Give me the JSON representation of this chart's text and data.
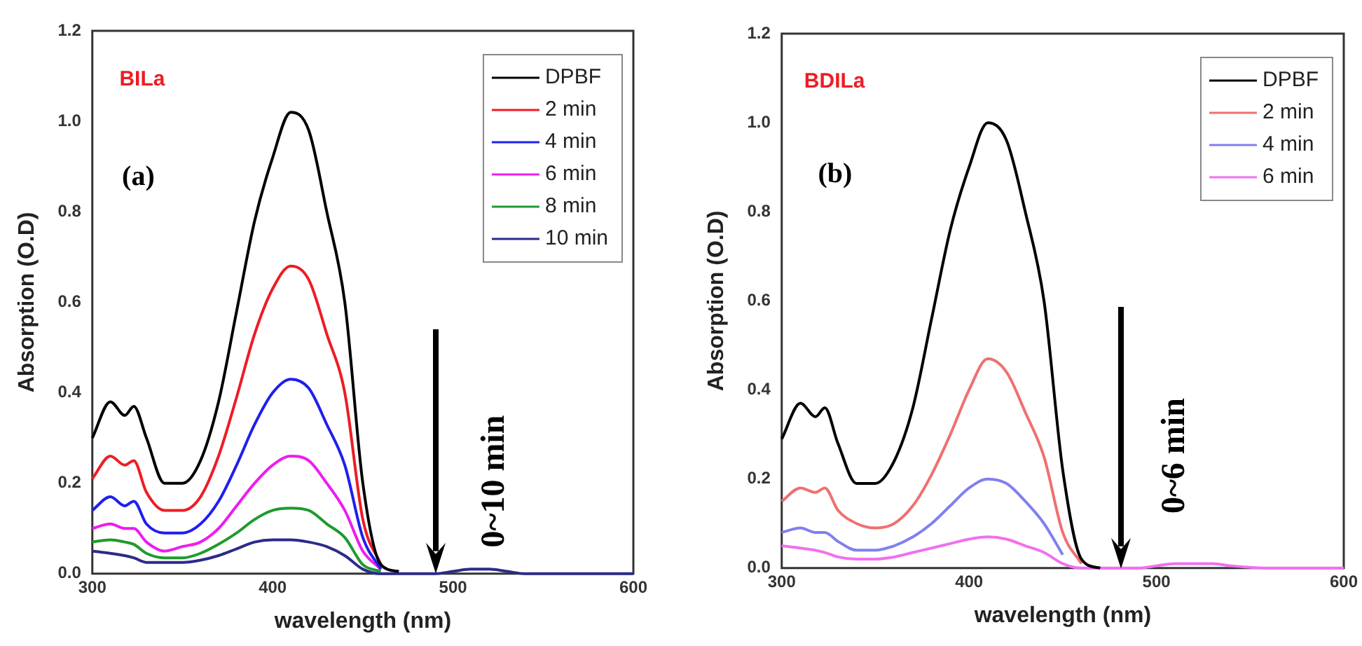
{
  "chart_data": [
    {
      "type": "line",
      "xlabel": "wavelength (nm)",
      "ylabel": "Absorption (O.D)",
      "annotations": [
        "BILa",
        "(a)",
        "0~10 min"
      ],
      "x": [
        300,
        310,
        318,
        323,
        330,
        340,
        350,
        360,
        370,
        380,
        390,
        400,
        410,
        420,
        430,
        440,
        450,
        460,
        470,
        480,
        490,
        500,
        510,
        520,
        530,
        540,
        560,
        580,
        600
      ],
      "xlim": [
        300,
        600
      ],
      "xticks": [
        300,
        400,
        500,
        600
      ],
      "ylim": [
        0,
        1.2
      ],
      "yticks": [
        {
          "value": 0,
          "label": "0.0"
        },
        {
          "value": 0.2,
          "label": "0.2"
        },
        {
          "value": 0.4,
          "label": "0.4"
        },
        {
          "value": 0.6,
          "label": "0.6"
        },
        {
          "value": 0.8,
          "label": "0.8"
        },
        {
          "value": 1.0,
          "label": "1.0"
        },
        {
          "value": 1.2,
          "label": "1.2"
        }
      ],
      "grid": false,
      "legend": "top right",
      "marker": "none",
      "line_style": "solid",
      "series": [
        {
          "name": "DPBF",
          "color": "#000000",
          "values": [
            0.3,
            0.38,
            0.35,
            0.37,
            0.3,
            0.2,
            0.2,
            0.25,
            0.38,
            0.58,
            0.78,
            0.92,
            1.02,
            0.98,
            0.8,
            0.6,
            0.2,
            0.02,
            0.005,
            null,
            null,
            null,
            null,
            null,
            null,
            null,
            null,
            null,
            null
          ]
        },
        {
          "name": "2 min",
          "color": "#ee1c24",
          "values": [
            0.21,
            0.26,
            0.24,
            0.25,
            0.18,
            0.14,
            0.14,
            0.17,
            0.26,
            0.39,
            0.53,
            0.63,
            0.68,
            0.65,
            0.53,
            0.4,
            0.12,
            0.02,
            null,
            null,
            null,
            null,
            null,
            null,
            null,
            null,
            null,
            null,
            null
          ]
        },
        {
          "name": "4 min",
          "color": "#1f1fee",
          "values": [
            0.14,
            0.17,
            0.15,
            0.16,
            0.11,
            0.09,
            0.09,
            0.11,
            0.16,
            0.24,
            0.33,
            0.4,
            0.43,
            0.41,
            0.33,
            0.24,
            0.08,
            0.01,
            null,
            null,
            null,
            null,
            null,
            null,
            null,
            null,
            null,
            null,
            null
          ]
        },
        {
          "name": "6 min",
          "color": "#ee1cee",
          "values": [
            0.1,
            0.11,
            0.1,
            0.1,
            0.07,
            0.05,
            0.06,
            0.07,
            0.1,
            0.15,
            0.2,
            0.24,
            0.26,
            0.25,
            0.2,
            0.14,
            0.05,
            0.01,
            null,
            null,
            null,
            null,
            null,
            null,
            null,
            null,
            null,
            null,
            null
          ]
        },
        {
          "name": "8 min",
          "color": "#1f9a2e",
          "values": [
            0.07,
            0.075,
            0.07,
            0.065,
            0.045,
            0.035,
            0.035,
            0.045,
            0.065,
            0.09,
            0.12,
            0.14,
            0.145,
            0.14,
            0.11,
            0.08,
            0.02,
            0.005,
            null,
            null,
            null,
            null,
            null,
            null,
            null,
            null,
            null,
            null,
            null
          ]
        },
        {
          "name": "10 min",
          "color": "#2b2b8a",
          "values": [
            0.05,
            0.045,
            0.04,
            0.035,
            0.025,
            0.025,
            0.025,
            0.03,
            0.04,
            0.055,
            0.07,
            0.075,
            0.075,
            0.07,
            0.06,
            0.04,
            0.01,
            0,
            0,
            0,
            0,
            0.005,
            0.01,
            0.01,
            0.005,
            0,
            0,
            0,
            0
          ]
        }
      ]
    },
    {
      "type": "line",
      "xlabel": "wavelength (nm)",
      "ylabel": "Absorption (O.D)",
      "annotations": [
        "BDILa",
        "(b)",
        "0~6 min"
      ],
      "x": [
        300,
        310,
        318,
        323,
        330,
        340,
        350,
        360,
        370,
        380,
        390,
        400,
        410,
        420,
        430,
        440,
        450,
        460,
        470,
        480,
        490,
        500,
        510,
        520,
        530,
        540,
        560,
        580,
        600
      ],
      "xlim": [
        300,
        600
      ],
      "xticks": [
        300,
        400,
        500,
        600
      ],
      "ylim": [
        0,
        1.2
      ],
      "yticks": [
        {
          "value": 0,
          "label": "0.0"
        },
        {
          "value": 0.2,
          "label": "0.2"
        },
        {
          "value": 0.4,
          "label": "0.4"
        },
        {
          "value": 0.6,
          "label": "0.6"
        },
        {
          "value": 0.8,
          "label": "0.8"
        },
        {
          "value": 1.0,
          "label": "1.0"
        },
        {
          "value": 1.2,
          "label": "1.2"
        }
      ],
      "grid": false,
      "legend": "top right",
      "marker": "none",
      "line_style": "solid",
      "series": [
        {
          "name": "DPBF",
          "color": "#000000",
          "values": [
            0.29,
            0.37,
            0.34,
            0.36,
            0.28,
            0.19,
            0.19,
            0.24,
            0.36,
            0.56,
            0.76,
            0.9,
            1.0,
            0.96,
            0.8,
            0.6,
            0.22,
            0.02,
            0,
            null,
            null,
            null,
            null,
            null,
            null,
            null,
            null,
            null,
            null
          ]
        },
        {
          "name": "2 min",
          "color": "#f07070",
          "values": [
            0.15,
            0.18,
            0.17,
            0.18,
            0.13,
            0.1,
            0.09,
            0.1,
            0.14,
            0.21,
            0.3,
            0.4,
            0.47,
            0.44,
            0.35,
            0.25,
            0.08,
            0.01,
            null,
            null,
            null,
            null,
            null,
            null,
            null,
            null,
            null,
            null,
            null
          ]
        },
        {
          "name": "4 min",
          "color": "#8080f0",
          "values": [
            0.08,
            0.09,
            0.08,
            0.08,
            0.06,
            0.04,
            0.04,
            0.05,
            0.07,
            0.1,
            0.14,
            0.18,
            0.2,
            0.19,
            0.15,
            0.1,
            0.03,
            null,
            null,
            null,
            null,
            null,
            null,
            null,
            null,
            null,
            null,
            null,
            null
          ]
        },
        {
          "name": "6 min",
          "color": "#f070f0",
          "values": [
            0.05,
            0.045,
            0.04,
            0.035,
            0.025,
            0.02,
            0.02,
            0.025,
            0.035,
            0.045,
            0.055,
            0.065,
            0.07,
            0.065,
            0.05,
            0.035,
            0.01,
            0,
            0,
            0,
            0,
            0.005,
            0.01,
            0.01,
            0.01,
            0.005,
            0,
            0,
            0
          ]
        }
      ]
    }
  ]
}
